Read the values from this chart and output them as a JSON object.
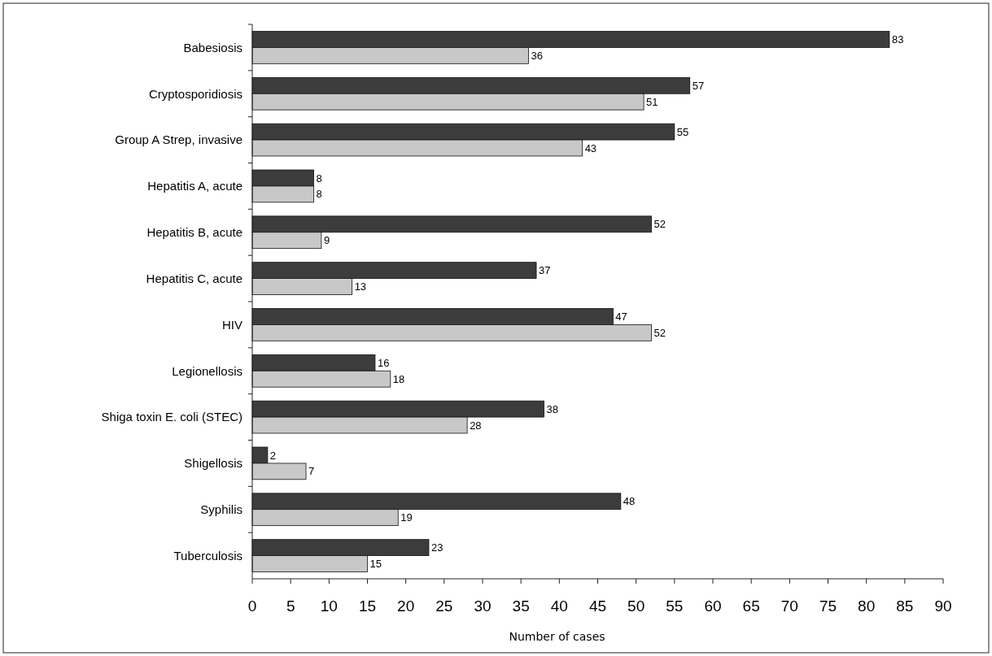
{
  "chart_data": {
    "type": "bar",
    "orientation": "horizontal",
    "xlabel": "Number of cases",
    "categories": [
      "Babesiosis",
      "Cryptosporidiosis",
      "Group A Strep, invasive",
      "Hepatitis A, acute",
      "Hepatitis B, acute",
      "Hepatitis C, acute",
      "HIV",
      "Legionellosis",
      "Shiga toxin E. coli (STEC)",
      "Shigellosis",
      "Syphilis",
      "Tuberculosis"
    ],
    "series": [
      {
        "color": "#3c3c3c",
        "values": [
          83,
          57,
          55,
          8,
          52,
          37,
          47,
          16,
          38,
          2,
          48,
          23
        ]
      },
      {
        "color": "#c8c8c8",
        "values": [
          36,
          51,
          43,
          8,
          9,
          13,
          52,
          18,
          28,
          7,
          19,
          15
        ]
      }
    ],
    "xlim": [
      0,
      90
    ],
    "xticks": [
      0,
      5,
      10,
      15,
      20,
      25,
      30,
      35,
      40,
      45,
      50,
      55,
      60,
      65,
      70,
      75,
      80,
      85,
      90
    ],
    "data_labels": true
  }
}
